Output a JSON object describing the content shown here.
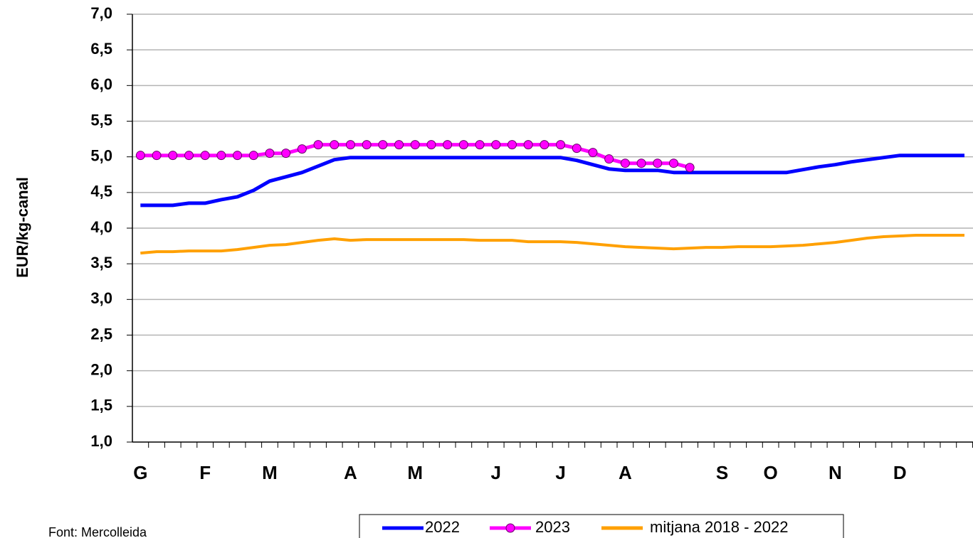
{
  "chart_data": {
    "type": "line",
    "y_label": "EUR/kg-canal",
    "source": "Font: Mercolleida",
    "categories": [
      "G",
      null,
      null,
      null,
      "F",
      null,
      null,
      null,
      "M",
      null,
      null,
      null,
      null,
      "A",
      null,
      null,
      null,
      "M",
      null,
      null,
      null,
      null,
      "J",
      null,
      null,
      null,
      "J",
      null,
      null,
      null,
      "A",
      null,
      null,
      null,
      null,
      null,
      "S",
      null,
      null,
      "O",
      null,
      null,
      null,
      "N",
      null,
      null,
      null,
      "D",
      null,
      null,
      null,
      null
    ],
    "series": [
      {
        "name": "2022",
        "color": "#0000ff",
        "marker": false,
        "values": [
          4.32,
          4.32,
          4.32,
          4.35,
          4.35,
          4.4,
          4.44,
          4.53,
          4.66,
          4.72,
          4.78,
          4.87,
          4.96,
          4.99,
          4.99,
          4.99,
          4.99,
          4.99,
          4.99,
          4.99,
          4.99,
          4.99,
          4.99,
          4.99,
          4.99,
          4.99,
          4.99,
          4.95,
          4.89,
          4.83,
          4.81,
          4.81,
          4.81,
          4.78,
          4.78,
          4.78,
          4.78,
          4.78,
          4.78,
          4.78,
          4.78,
          4.82,
          4.86,
          4.89,
          4.93,
          4.96,
          4.99,
          5.02,
          5.02,
          5.02,
          5.02,
          5.02
        ]
      },
      {
        "name": "2023",
        "color": "#ff00ff",
        "marker": true,
        "values": [
          5.02,
          5.02,
          5.02,
          5.02,
          5.02,
          5.02,
          5.02,
          5.02,
          5.05,
          5.05,
          5.11,
          5.17,
          5.17,
          5.17,
          5.17,
          5.17,
          5.17,
          5.17,
          5.17,
          5.17,
          5.17,
          5.17,
          5.17,
          5.17,
          5.17,
          5.17,
          5.17,
          5.12,
          5.06,
          4.97,
          4.91,
          4.91,
          4.91,
          4.91,
          4.85,
          null,
          null,
          null,
          null,
          null,
          null,
          null,
          null,
          null,
          null,
          null,
          null,
          null,
          null,
          null,
          null,
          null
        ]
      },
      {
        "name": "mitjana 2018 - 2022",
        "color": "#ffa000",
        "marker": false,
        "values": [
          3.65,
          3.67,
          3.67,
          3.68,
          3.68,
          3.68,
          3.7,
          3.73,
          3.76,
          3.77,
          3.8,
          3.83,
          3.85,
          3.83,
          3.84,
          3.84,
          3.84,
          3.84,
          3.84,
          3.84,
          3.84,
          3.83,
          3.83,
          3.83,
          3.81,
          3.81,
          3.81,
          3.8,
          3.78,
          3.76,
          3.74,
          3.73,
          3.72,
          3.71,
          3.72,
          3.73,
          3.73,
          3.74,
          3.74,
          3.74,
          3.75,
          3.76,
          3.78,
          3.8,
          3.83,
          3.86,
          3.88,
          3.89,
          3.9,
          3.9,
          3.9,
          3.9
        ]
      }
    ],
    "ylim": [
      1.0,
      7.0
    ],
    "yticks": [
      {
        "value": 1.0,
        "label": "1,0"
      },
      {
        "value": 1.5,
        "label": "1,5"
      },
      {
        "value": 2.0,
        "label": "2,0"
      },
      {
        "value": 2.5,
        "label": "2,5"
      },
      {
        "value": 3.0,
        "label": "3,0"
      },
      {
        "value": 3.5,
        "label": "3,5"
      },
      {
        "value": 4.0,
        "label": "4,0"
      },
      {
        "value": 4.5,
        "label": "4,5"
      },
      {
        "value": 5.0,
        "label": "5,0"
      },
      {
        "value": 5.5,
        "label": "5,5"
      },
      {
        "value": 6.0,
        "label": "6,0"
      },
      {
        "value": 6.5,
        "label": "6,5"
      },
      {
        "value": 7.0,
        "label": "7,0"
      }
    ],
    "grid": true
  }
}
